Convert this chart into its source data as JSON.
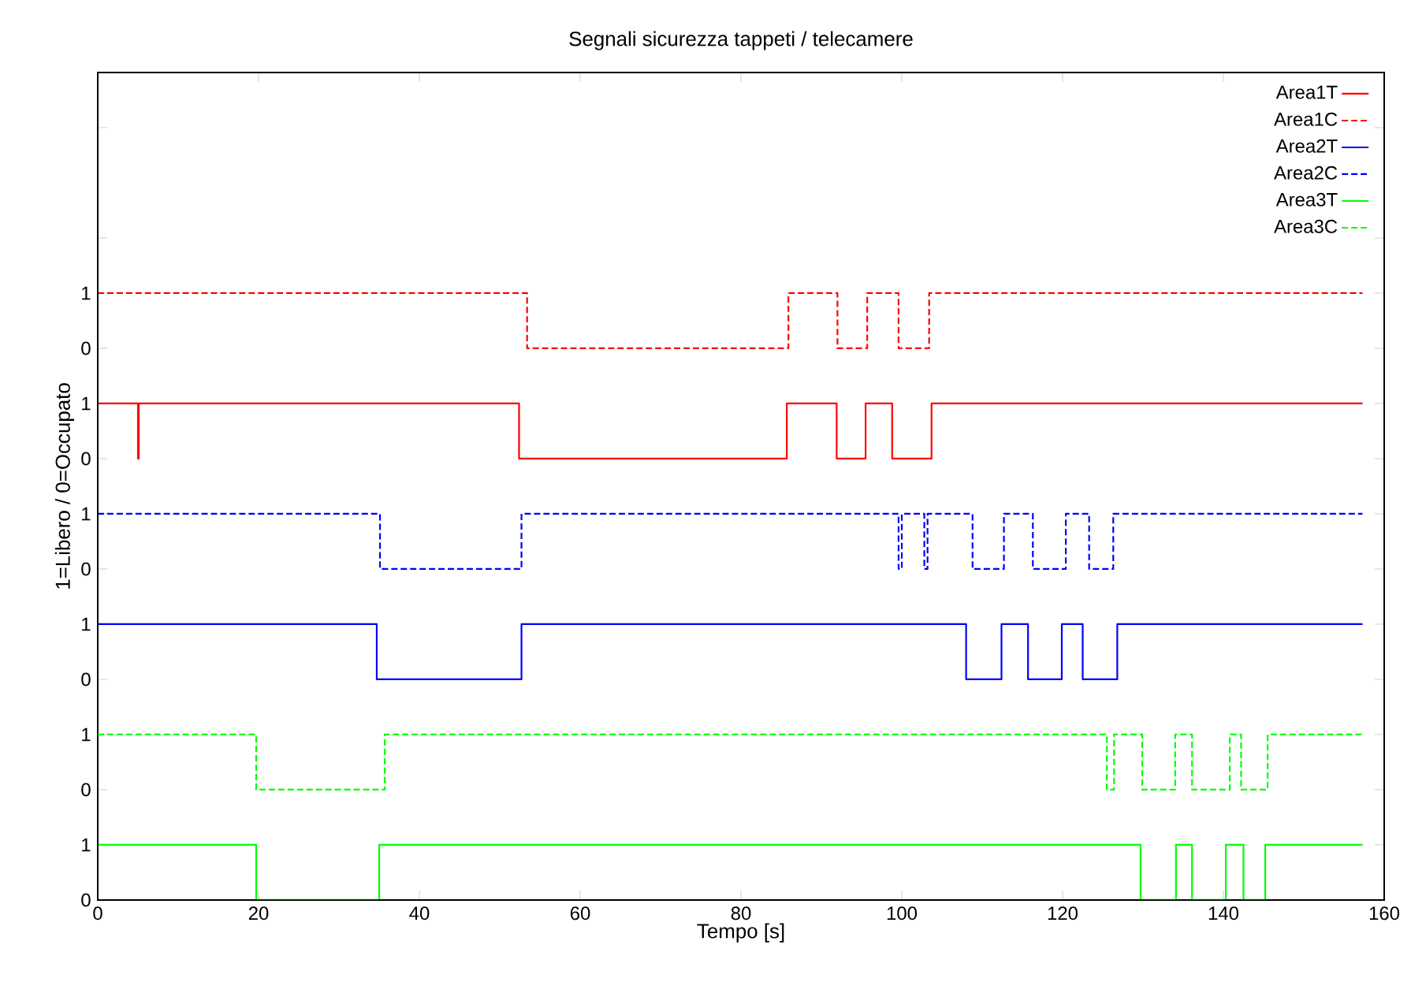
{
  "chart_data": [
    {
      "type": "step",
      "title": "Segnali sicurezza tappeti / telecamere",
      "ylabel": "1=Libero / 0=Occupato",
      "xlim": [
        0,
        160
      ],
      "ylim": [
        -8,
        7
      ],
      "yticks": [
        0,
        1
      ],
      "tick_labels": "y",
      "legend": "top right",
      "marker": "none",
      "series": [
        {
          "name": "Area1T",
          "color": "#ff0000",
          "line_style": "solid",
          "x": [
            0,
            5.0,
            5.1,
            52.4,
            85.7,
            91.9,
            95.5,
            98.8,
            103.7,
            157.3
          ],
          "values": [
            1,
            0,
            1,
            0,
            1,
            0,
            1,
            0,
            1,
            1
          ]
        }
      ]
    },
    {
      "type": "step",
      "xlim": [
        0,
        160
      ],
      "ylim": [
        -10,
        5
      ],
      "yticks": [
        0,
        1,
        {
          "value": 2,
          "label": null
        },
        {
          "value": 4,
          "label": null
        }
      ],
      "tick_labels": "y",
      "legend": "top right",
      "marker": "none",
      "series": [
        {
          "name": "Area1C",
          "color": "#ff0000",
          "line_style": "dashed",
          "x": [
            0,
            53.4,
            85.9,
            92.0,
            95.7,
            99.6,
            103.4,
            157.3
          ],
          "values": [
            1,
            0,
            1,
            0,
            1,
            0,
            1,
            1
          ]
        }
      ]
    },
    {
      "type": "step",
      "xlim": [
        0,
        160
      ],
      "ylim": [
        -4,
        11
      ],
      "yticks": [
        0,
        1
      ],
      "tick_labels": "y",
      "legend": "top right",
      "marker": "none",
      "series": [
        {
          "name": "Area2T",
          "color": "#0000ff",
          "line_style": "solid",
          "x": [
            0,
            34.7,
            52.7,
            108.0,
            112.4,
            115.7,
            119.9,
            122.5,
            126.8,
            157.3
          ],
          "values": [
            1,
            0,
            1,
            0,
            1,
            0,
            1,
            0,
            1,
            1
          ]
        }
      ]
    },
    {
      "type": "step",
      "xlim": [
        0,
        160
      ],
      "ylim": [
        -6,
        9
      ],
      "yticks": [
        0,
        1
      ],
      "tick_labels": "y",
      "legend": "top right",
      "marker": "none",
      "series": [
        {
          "name": "Area2C",
          "color": "#0000ff",
          "line_style": "dashed",
          "x": [
            0,
            35.1,
            52.7,
            99.6,
            100.0,
            102.8,
            103.2,
            108.8,
            112.7,
            116.3,
            120.4,
            123.3,
            126.3,
            157.3
          ],
          "values": [
            1,
            0,
            1,
            0,
            1,
            0,
            1,
            0,
            1,
            0,
            1,
            0,
            1,
            1
          ]
        }
      ]
    },
    {
      "type": "step",
      "xlabel": "Tempo [s]",
      "xlim": [
        0,
        160
      ],
      "xticks": [
        0,
        20,
        40,
        60,
        80,
        100,
        120,
        140,
        160
      ],
      "ylim": [
        0,
        15
      ],
      "yticks": [
        0,
        1
      ],
      "legend": "top right",
      "marker": "none",
      "series": [
        {
          "name": "Area3T",
          "color": "#00ff00",
          "line_style": "solid",
          "x": [
            0,
            19.7,
            35.0,
            129.7,
            134.1,
            136.1,
            140.3,
            142.5,
            145.2,
            157.3
          ],
          "values": [
            1,
            0,
            1,
            0,
            1,
            0,
            1,
            0,
            1,
            1
          ]
        }
      ]
    },
    {
      "type": "step",
      "xlim": [
        0,
        160
      ],
      "ylim": [
        -2,
        13
      ],
      "yticks": [
        0,
        1
      ],
      "tick_labels": "y",
      "legend": "top right",
      "marker": "none",
      "series": [
        {
          "name": "Area3C",
          "color": "#00ff00",
          "line_style": "dashed",
          "x": [
            0,
            19.7,
            35.7,
            125.5,
            126.4,
            129.9,
            134.0,
            136.1,
            140.8,
            142.2,
            145.5,
            157.3
          ],
          "values": [
            1,
            0,
            1,
            0,
            1,
            0,
            1,
            0,
            1,
            0,
            1,
            1
          ]
        }
      ]
    }
  ]
}
